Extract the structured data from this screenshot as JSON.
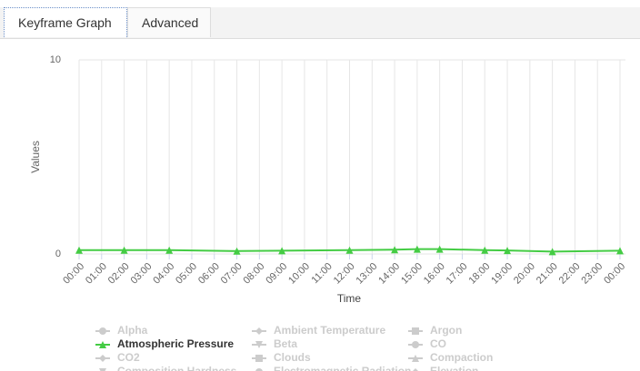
{
  "tabs": [
    "Keyframe Graph",
    "Advanced"
  ],
  "chart_data": {
    "type": "line",
    "y_label": "Values",
    "x_label": "Time",
    "xlim": [
      0,
      24
    ],
    "xticks": [
      {
        "value": 0,
        "label": "00:00"
      },
      {
        "value": 1,
        "label": "01:00"
      },
      {
        "value": 2,
        "label": "02:00"
      },
      {
        "value": 3,
        "label": "03:00"
      },
      {
        "value": 4,
        "label": "04:00"
      },
      {
        "value": 5,
        "label": "05:00"
      },
      {
        "value": 6,
        "label": "06:00"
      },
      {
        "value": 7,
        "label": "07:00"
      },
      {
        "value": 8,
        "label": "08:00"
      },
      {
        "value": 9,
        "label": "09:00"
      },
      {
        "value": 10,
        "label": "10:00"
      },
      {
        "value": 11,
        "label": "11:00"
      },
      {
        "value": 12,
        "label": "12:00"
      },
      {
        "value": 13,
        "label": "13:00"
      },
      {
        "value": 14,
        "label": "14:00"
      },
      {
        "value": 15,
        "label": "15:00"
      },
      {
        "value": 16,
        "label": "16:00"
      },
      {
        "value": 17,
        "label": "17:00"
      },
      {
        "value": 18,
        "label": "18:00"
      },
      {
        "value": 19,
        "label": "19:00"
      },
      {
        "value": 20,
        "label": "20:00"
      },
      {
        "value": 21,
        "label": "21:00"
      },
      {
        "value": 22,
        "label": "22:00"
      },
      {
        "value": 23,
        "label": "23:00"
      },
      {
        "value": 24,
        "label": "00:00"
      }
    ],
    "ylim": [
      0,
      10
    ],
    "yticks": [
      0,
      10
    ],
    "grid": true,
    "series": [
      {
        "name": "Alpha",
        "color": "#cccccc",
        "visible": false
      },
      {
        "name": "Ambient Temperature",
        "color": "#cccccc",
        "visible": false
      },
      {
        "name": "Argon",
        "color": "#cccccc",
        "visible": false
      },
      {
        "name": "Atmospheric Pressure",
        "color": "#44cc44",
        "visible": true,
        "x": [
          0,
          2,
          4,
          7,
          9,
          12,
          14,
          15,
          16,
          18,
          19,
          21,
          24
        ],
        "values": [
          0.2,
          0.2,
          0.2,
          0.15,
          0.17,
          0.2,
          0.22,
          0.25,
          0.25,
          0.2,
          0.18,
          0.12,
          0.17
        ]
      },
      {
        "name": "Beta",
        "color": "#cccccc",
        "visible": false
      },
      {
        "name": "CO",
        "color": "#cccccc",
        "visible": false
      },
      {
        "name": "CO2",
        "color": "#cccccc",
        "visible": false
      },
      {
        "name": "Clouds",
        "color": "#cccccc",
        "visible": false
      },
      {
        "name": "Compaction",
        "color": "#cccccc",
        "visible": false
      },
      {
        "name": "Composition Hardness",
        "color": "#cccccc",
        "visible": false
      },
      {
        "name": "Electromagnetic Radiation",
        "color": "#cccccc",
        "visible": false
      },
      {
        "name": "Elevation",
        "color": "#cccccc",
        "visible": false
      }
    ]
  }
}
